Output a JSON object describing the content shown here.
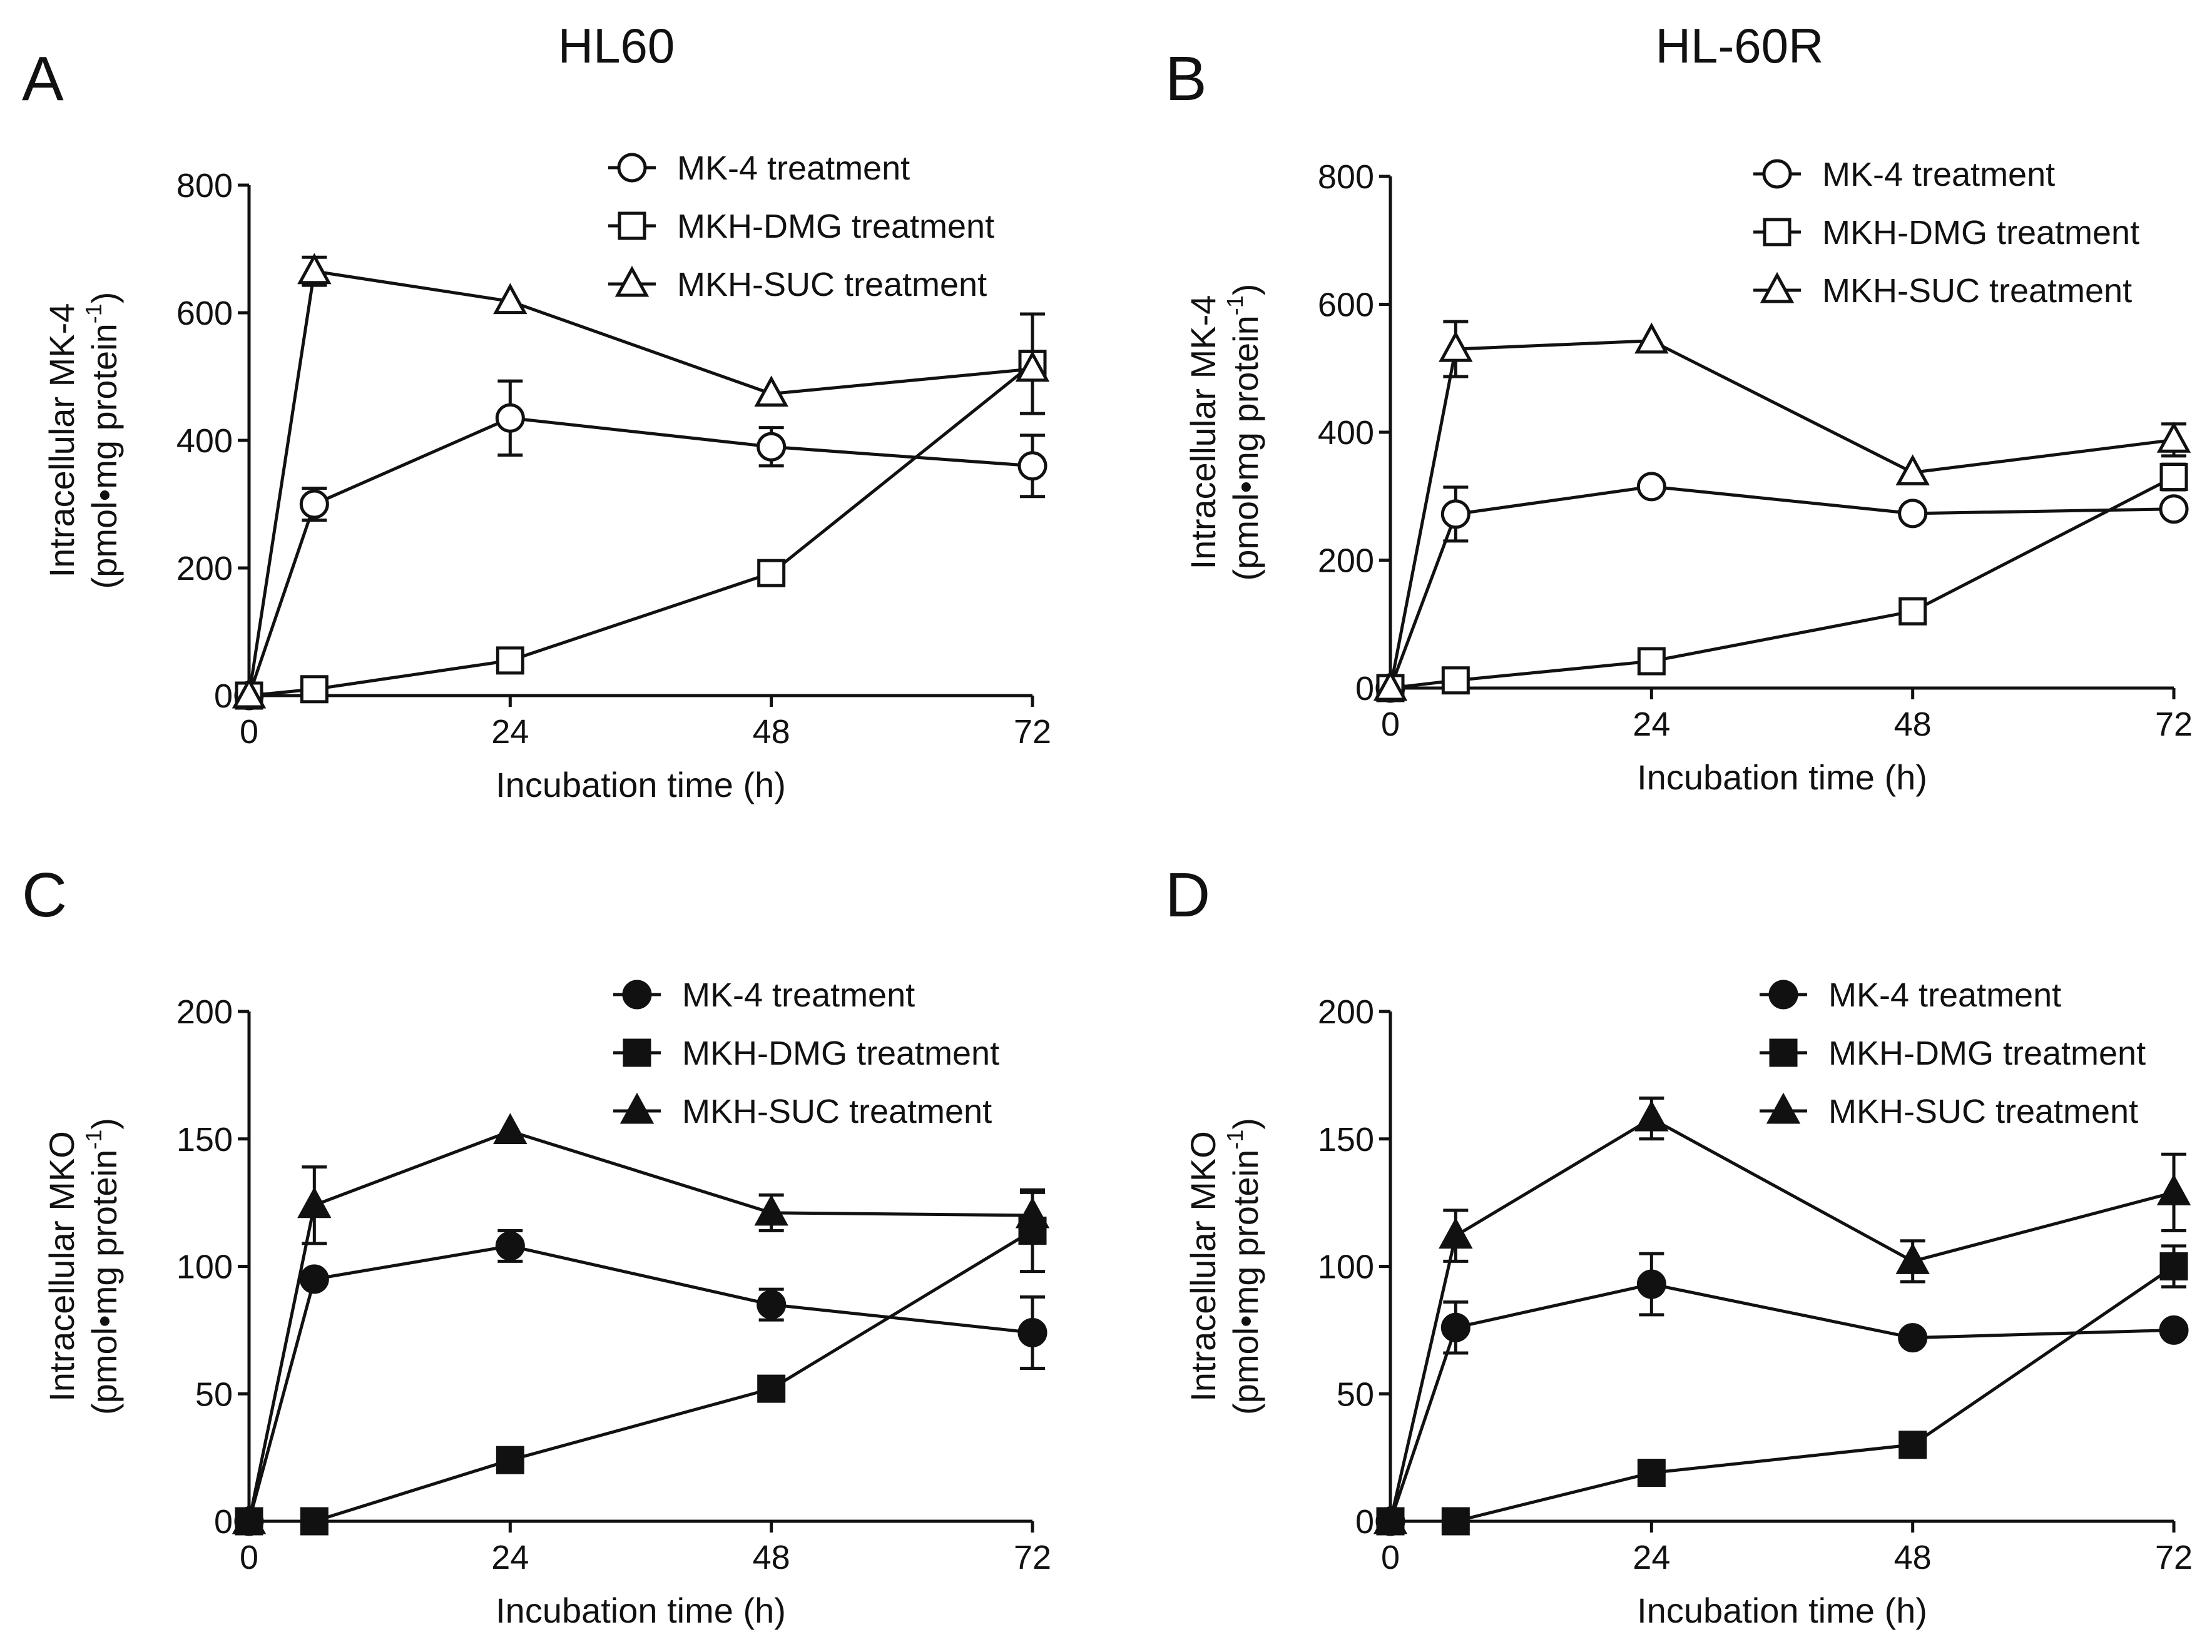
{
  "chart_data": [
    {
      "panel": "A",
      "title": "HL60",
      "type": "line",
      "xlabel": "Incubation time (h)",
      "ylabel_line1": "Intracellular MK-4",
      "ylabel_line2_prefix": "(pmol•mg protein",
      "ylabel_sup": "-1",
      "ylabel_line2_suffix": ")",
      "xlim": [
        0,
        72
      ],
      "ylim": [
        0,
        800
      ],
      "xticks": [
        0,
        24,
        48,
        72
      ],
      "yticks": [
        0,
        200,
        400,
        600,
        800
      ],
      "xtick_labels": [
        "0",
        "24",
        "48",
        "72"
      ],
      "ytick_labels": [
        "0",
        "200",
        "400",
        "600",
        "800"
      ],
      "legend_position": "top-right",
      "series": [
        {
          "name": "MK-4 treatment",
          "marker": "circle",
          "filled": false,
          "x": [
            0,
            6,
            24,
            48,
            72
          ],
          "values": [
            0,
            300,
            435,
            390,
            360
          ],
          "errors": [
            0,
            25,
            58,
            30,
            48
          ]
        },
        {
          "name": "MKH-DMG treatment",
          "marker": "square",
          "filled": false,
          "x": [
            0,
            6,
            24,
            48,
            72
          ],
          "values": [
            0,
            10,
            55,
            192,
            520
          ],
          "errors": [
            0,
            0,
            0,
            0,
            78
          ]
        },
        {
          "name": "MKH-SUC treatment",
          "marker": "triangle",
          "filled": false,
          "x": [
            0,
            6,
            24,
            48,
            72
          ],
          "values": [
            0,
            665,
            618,
            473,
            512
          ],
          "errors": [
            0,
            22,
            0,
            0,
            0
          ]
        }
      ]
    },
    {
      "panel": "B",
      "title": "HL-60R",
      "type": "line",
      "xlabel": "Incubation time (h)",
      "ylabel_line1": "Intracellular MK-4",
      "ylabel_line2_prefix": "(pmol•mg protein",
      "ylabel_sup": "-1",
      "ylabel_line2_suffix": ")",
      "xlim": [
        0,
        72
      ],
      "ylim": [
        0,
        800
      ],
      "xticks": [
        0,
        24,
        48,
        72
      ],
      "yticks": [
        0,
        200,
        400,
        600,
        800
      ],
      "xtick_labels": [
        "0",
        "24",
        "48",
        "72"
      ],
      "ytick_labels": [
        "0",
        "200",
        "400",
        "600",
        "800"
      ],
      "legend_position": "top-right",
      "series": [
        {
          "name": "MK-4 treatment",
          "marker": "circle",
          "filled": false,
          "x": [
            0,
            6,
            24,
            48,
            72
          ],
          "values": [
            0,
            272,
            315,
            273,
            280
          ],
          "errors": [
            0,
            42,
            0,
            0,
            0
          ]
        },
        {
          "name": "MKH-DMG treatment",
          "marker": "square",
          "filled": false,
          "x": [
            0,
            6,
            24,
            48,
            72
          ],
          "values": [
            0,
            12,
            42,
            120,
            330
          ],
          "errors": [
            0,
            0,
            0,
            0,
            20
          ]
        },
        {
          "name": "MKH-SUC treatment",
          "marker": "triangle",
          "filled": false,
          "x": [
            0,
            6,
            24,
            48,
            72
          ],
          "values": [
            0,
            530,
            543,
            337,
            388
          ],
          "errors": [
            0,
            43,
            0,
            0,
            25
          ]
        }
      ]
    },
    {
      "panel": "C",
      "title": "",
      "type": "line",
      "xlabel": "Incubation time (h)",
      "ylabel_line1": "Intracellular MKO",
      "ylabel_line2_prefix": "(pmol•mg protein",
      "ylabel_sup": "-1",
      "ylabel_line2_suffix": ")",
      "xlim": [
        0,
        72
      ],
      "ylim": [
        0,
        200
      ],
      "xticks": [
        0,
        24,
        48,
        72
      ],
      "yticks": [
        0,
        50,
        100,
        150,
        200
      ],
      "xtick_labels": [
        "0",
        "24",
        "48",
        "72"
      ],
      "ytick_labels": [
        "0",
        "50",
        "100",
        "150",
        "200"
      ],
      "legend_position": "top-right",
      "series": [
        {
          "name": "MK-4 treatment",
          "marker": "circle",
          "filled": true,
          "x": [
            0,
            6,
            24,
            48,
            72
          ],
          "values": [
            0,
            95,
            108,
            85,
            74
          ],
          "errors": [
            0,
            0,
            6,
            6,
            14
          ]
        },
        {
          "name": "MKH-DMG treatment",
          "marker": "square",
          "filled": true,
          "x": [
            0,
            6,
            24,
            48,
            72
          ],
          "values": [
            0,
            0,
            24,
            52,
            114
          ],
          "errors": [
            0,
            0,
            0,
            0,
            16
          ]
        },
        {
          "name": "MKH-SUC treatment",
          "marker": "triangle",
          "filled": true,
          "x": [
            0,
            6,
            24,
            48,
            72
          ],
          "values": [
            0,
            124,
            153,
            121,
            120
          ],
          "errors": [
            0,
            15,
            0,
            7,
            9
          ]
        }
      ]
    },
    {
      "panel": "D",
      "title": "",
      "type": "line",
      "xlabel": "Incubation time (h)",
      "ylabel_line1": "Intracellular MKO",
      "ylabel_line2_prefix": "(pmol•mg protein",
      "ylabel_sup": "-1",
      "ylabel_line2_suffix": ")",
      "xlim": [
        0,
        72
      ],
      "ylim": [
        0,
        200
      ],
      "xticks": [
        0,
        24,
        48,
        72
      ],
      "yticks": [
        0,
        50,
        100,
        150,
        200
      ],
      "xtick_labels": [
        "0",
        "24",
        "48",
        "72"
      ],
      "ytick_labels": [
        "0",
        "50",
        "100",
        "150",
        "200"
      ],
      "legend_position": "top-right",
      "series": [
        {
          "name": "MK-4 treatment",
          "marker": "circle",
          "filled": true,
          "x": [
            0,
            6,
            24,
            48,
            72
          ],
          "values": [
            0,
            76,
            93,
            72,
            75
          ],
          "errors": [
            0,
            10,
            12,
            0,
            0
          ]
        },
        {
          "name": "MKH-DMG treatment",
          "marker": "square",
          "filled": true,
          "x": [
            0,
            6,
            24,
            48,
            72
          ],
          "values": [
            0,
            0,
            19,
            30,
            100
          ],
          "errors": [
            0,
            0,
            0,
            0,
            8
          ]
        },
        {
          "name": "MKH-SUC treatment",
          "marker": "triangle",
          "filled": true,
          "x": [
            0,
            6,
            24,
            48,
            72
          ],
          "values": [
            0,
            112,
            158,
            102,
            129
          ],
          "errors": [
            0,
            10,
            8,
            8,
            15
          ]
        }
      ]
    }
  ]
}
